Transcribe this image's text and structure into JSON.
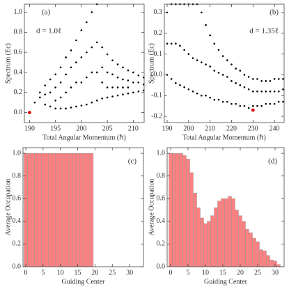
{
  "chart_data": [
    {
      "type": "scatter",
      "xlabel": "Total Angular Momentum (ℏ)",
      "ylabel": "Spectrum (Ec)",
      "annotations": [
        "(a)",
        "d = 1.0ℓ"
      ],
      "xlim": [
        189,
        212.1
      ],
      "ylim": [
        -0.1,
        1.08
      ],
      "xticks": [
        190,
        195,
        200,
        205,
        210
      ],
      "yticks": [
        {
          "value": 0,
          "label": "0.0"
        },
        {
          "value": 0.2,
          "label": "0.2"
        },
        {
          "value": 0.4,
          "label": "0.4"
        },
        {
          "value": 0.6,
          "label": "0.6"
        },
        {
          "value": 0.8,
          "label": "0.8"
        },
        {
          "value": 1,
          "label": "1.0"
        }
      ],
      "series": [
        {
          "color": "#000000",
          "x": [
            191,
            192,
            192,
            193,
            193,
            193,
            194,
            194,
            194,
            195,
            195,
            195,
            195,
            196,
            196,
            196,
            196,
            197,
            197,
            197,
            197,
            198,
            198,
            198,
            198,
            199,
            199,
            199,
            199,
            200,
            200,
            200,
            200,
            201,
            201,
            201,
            201,
            202,
            202,
            202,
            202,
            203,
            203,
            203,
            203,
            204,
            204,
            204,
            204,
            205,
            205,
            205,
            205,
            206,
            206,
            206,
            206,
            207,
            207,
            207,
            207,
            208,
            208,
            208,
            208,
            209,
            209,
            209,
            209,
            210,
            210,
            210,
            211,
            211,
            211,
            212,
            212,
            212
          ],
          "values": [
            0.1,
            0.15,
            0.2,
            0.27,
            0.18,
            0.08,
            0.33,
            0.2,
            0.06,
            0.38,
            0.25,
            0.12,
            0.04,
            0.45,
            0.3,
            0.15,
            0.04,
            0.55,
            0.38,
            0.2,
            0.04,
            0.62,
            0.45,
            0.25,
            0.05,
            0.72,
            0.5,
            0.3,
            0.06,
            0.82,
            0.55,
            0.3,
            0.07,
            0.9,
            0.6,
            0.35,
            0.08,
            1.0,
            0.65,
            0.4,
            0.1,
            1.08,
            0.7,
            0.4,
            0.12,
            0.65,
            0.45,
            0.3,
            0.14,
            0.58,
            0.4,
            0.25,
            0.15,
            0.52,
            0.38,
            0.25,
            0.16,
            0.48,
            0.35,
            0.25,
            0.17,
            0.45,
            0.33,
            0.25,
            0.18,
            0.42,
            0.32,
            0.25,
            0.19,
            0.4,
            0.3,
            0.2,
            0.37,
            0.3,
            0.21,
            0.35,
            0.28,
            0.22
          ]
        },
        {
          "color": "#e00000",
          "x": [
            190
          ],
          "values": [
            0
          ]
        }
      ]
    },
    {
      "type": "scatter",
      "xlabel": "Total Angular Momentum (ℏ)",
      "ylabel": "Spectrum (Ec)",
      "annotations": [
        "(b)",
        "d = 1.35ℓ"
      ],
      "xlim": [
        188.7,
        244.5
      ],
      "ylim": [
        -0.23,
        0.34
      ],
      "xticks": [
        190,
        200,
        210,
        220,
        230,
        240
      ],
      "yticks": [
        {
          "value": -0.2,
          "label": "-0.2"
        },
        {
          "value": -0.1,
          "label": "-0.1"
        },
        {
          "value": 0,
          "label": "0.0"
        },
        {
          "value": 0.1,
          "label": "0.1"
        },
        {
          "value": 0.2,
          "label": "0.2"
        },
        {
          "value": 0.3,
          "label": "0.3"
        }
      ],
      "series": [
        {
          "color": "#000000",
          "x": [
            190,
            190,
            190,
            192,
            192,
            192,
            194,
            194,
            194,
            196,
            196,
            196,
            198,
            198,
            198,
            200,
            200,
            200,
            202,
            202,
            202,
            204,
            204,
            204,
            206,
            206,
            206,
            208,
            208,
            208,
            210,
            210,
            210,
            212,
            212,
            212,
            214,
            214,
            214,
            216,
            216,
            216,
            218,
            218,
            218,
            220,
            220,
            220,
            222,
            222,
            222,
            224,
            224,
            224,
            226,
            226,
            226,
            228,
            228,
            228,
            230,
            230,
            230,
            232,
            232,
            232,
            234,
            234,
            234,
            236,
            236,
            236,
            238,
            238,
            238,
            240,
            240,
            240,
            242,
            242,
            242,
            244,
            244,
            244
          ],
          "values": [
            0.3,
            0.15,
            0.0,
            0.34,
            0.15,
            -0.02,
            0.34,
            0.15,
            -0.04,
            0.34,
            0.14,
            -0.05,
            0.34,
            0.12,
            -0.06,
            0.34,
            0.1,
            -0.07,
            0.34,
            0.08,
            -0.08,
            0.34,
            0.07,
            -0.09,
            0.3,
            0.06,
            -0.1,
            0.24,
            0.05,
            -0.1,
            0.19,
            0.04,
            -0.11,
            0.15,
            0.02,
            -0.12,
            0.12,
            0.01,
            -0.12,
            0.09,
            0.0,
            -0.13,
            0.07,
            -0.01,
            -0.13,
            0.05,
            -0.03,
            -0.14,
            0.03,
            -0.04,
            -0.14,
            0.02,
            -0.05,
            -0.15,
            0.0,
            -0.06,
            -0.15,
            -0.01,
            -0.07,
            -0.16,
            -0.02,
            -0.08,
            -0.15,
            -0.02,
            -0.08,
            -0.15,
            -0.03,
            -0.08,
            -0.15,
            -0.03,
            -0.08,
            -0.14,
            -0.03,
            -0.08,
            -0.14,
            -0.02,
            -0.08,
            -0.14,
            -0.02,
            -0.08,
            -0.13,
            -0.02,
            -0.07,
            -0.13
          ]
        },
        {
          "color": "#e00000",
          "x": [
            230
          ],
          "values": [
            -0.17
          ]
        }
      ]
    },
    {
      "type": "bar",
      "xlabel": "Guiding Center",
      "ylabel": "Average Occupation",
      "annotations": [
        "(c)"
      ],
      "xlim": [
        -0.8,
        34
      ],
      "ylim": [
        0,
        1.05
      ],
      "xticks": [
        0,
        5,
        10,
        15,
        20,
        25,
        30
      ],
      "yticks": [
        {
          "value": 0,
          "label": "0.0"
        },
        {
          "value": 0.2,
          "label": "0.2"
        },
        {
          "value": 0.4,
          "label": "0.4"
        },
        {
          "value": 0.6,
          "label": "0.6"
        },
        {
          "value": 0.8,
          "label": "0.8"
        },
        {
          "value": 1,
          "label": "1.0"
        }
      ],
      "series": [
        {
          "color": "#ff8080",
          "x": [
            0,
            1,
            2,
            3,
            4,
            5,
            6,
            7,
            8,
            9,
            10,
            11,
            12,
            13,
            14,
            15,
            16,
            17,
            18,
            19
          ],
          "values": [
            1,
            1,
            1,
            1,
            1,
            1,
            1,
            1,
            1,
            1,
            1,
            1,
            1,
            1,
            1,
            1,
            1,
            1,
            1,
            1
          ]
        }
      ]
    },
    {
      "type": "bar",
      "xlabel": "Guiding Center",
      "ylabel": "Average Occupation",
      "annotations": [
        "(d)"
      ],
      "xlim": [
        -1,
        32.6
      ],
      "ylim": [
        0,
        1.05
      ],
      "xticks": [
        0,
        5,
        10,
        15,
        20,
        25,
        30
      ],
      "yticks": [
        {
          "value": 0,
          "label": "0.0"
        },
        {
          "value": 0.2,
          "label": "0.2"
        },
        {
          "value": 0.4,
          "label": "0.4"
        },
        {
          "value": 0.6,
          "label": "0.6"
        },
        {
          "value": 0.8,
          "label": "0.8"
        },
        {
          "value": 1,
          "label": "1.0"
        }
      ],
      "series": [
        {
          "color": "#ff8080",
          "x": [
            0,
            1,
            2,
            3,
            4,
            5,
            6,
            7,
            8,
            9,
            10,
            11,
            12,
            13,
            14,
            15,
            16,
            17,
            18,
            19,
            20,
            21,
            22,
            23,
            24,
            25,
            26,
            27,
            28,
            29,
            30,
            31
          ],
          "values": [
            1,
            1,
            1,
            1,
            0.98,
            0.95,
            0.83,
            0.65,
            0.52,
            0.43,
            0.38,
            0.4,
            0.45,
            0.52,
            0.58,
            0.6,
            0.6,
            0.62,
            0.6,
            0.5,
            0.45,
            0.4,
            0.33,
            0.3,
            0.25,
            0.22,
            0.15,
            0.14,
            0.1,
            0.06,
            0.05,
            0.02
          ]
        }
      ]
    }
  ]
}
